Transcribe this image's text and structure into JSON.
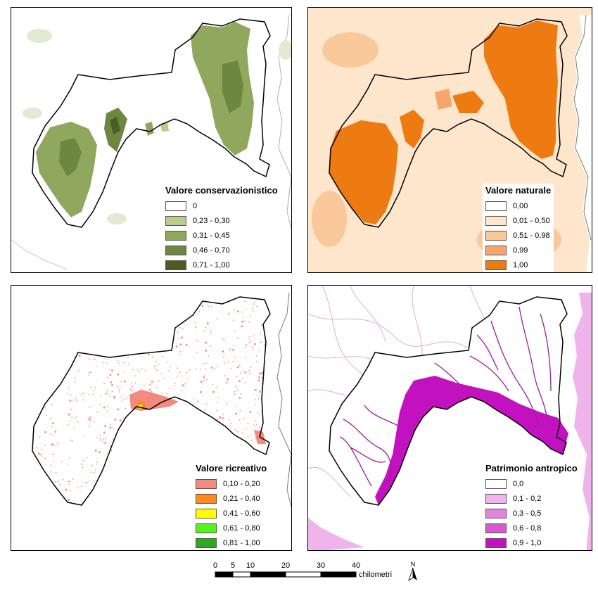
{
  "panels": [
    {
      "legend_title": "Valore conservazionistico",
      "classes": [
        {
          "label": "0",
          "color": "#ffffff"
        },
        {
          "label": "0,23 - 0,30",
          "color": "#b9cc8f"
        },
        {
          "label": "0,31 - 0,45",
          "color": "#8fa85e"
        },
        {
          "label": "0,46 - 0,70",
          "color": "#6e8740"
        },
        {
          "label": "0,71 - 1,00",
          "color": "#4a5e24"
        }
      ]
    },
    {
      "legend_title": "Valore naturale",
      "classes": [
        {
          "label": "0,00",
          "color": "#ffffff"
        },
        {
          "label": "0,01 - 0,50",
          "color": "#fde6cc"
        },
        {
          "label": "0,51 - 0,98",
          "color": "#f9c99b"
        },
        {
          "label": "0,99",
          "color": "#f6a56c"
        },
        {
          "label": "1,00",
          "color": "#ee7a12"
        }
      ]
    },
    {
      "legend_title": "Valore ricreativo",
      "classes": [
        {
          "label": "0,10 - 0,20",
          "color": "#f28a7e"
        },
        {
          "label": "0,21 - 0,40",
          "color": "#ff8c1a"
        },
        {
          "label": "0,41 - 0,60",
          "color": "#ffff00"
        },
        {
          "label": "0,61 - 0,80",
          "color": "#55f21f"
        },
        {
          "label": "0,81 - 1,00",
          "color": "#2ea81e"
        }
      ]
    },
    {
      "legend_title": "Patrimonio antropico",
      "classes": [
        {
          "label": "0,0",
          "color": "#ffffff"
        },
        {
          "label": "0,1 - 0,2",
          "color": "#f0b4ec"
        },
        {
          "label": "0,3 - 0,5",
          "color": "#e283dc"
        },
        {
          "label": "0,6 - 0,8",
          "color": "#d35bce"
        },
        {
          "label": "0,9 - 1,0",
          "color": "#c211be"
        }
      ]
    }
  ],
  "scale_bar": {
    "ticks": [
      "0",
      "5",
      "10",
      "20",
      "30",
      "40"
    ],
    "unit": "chilometri",
    "north": "N"
  }
}
